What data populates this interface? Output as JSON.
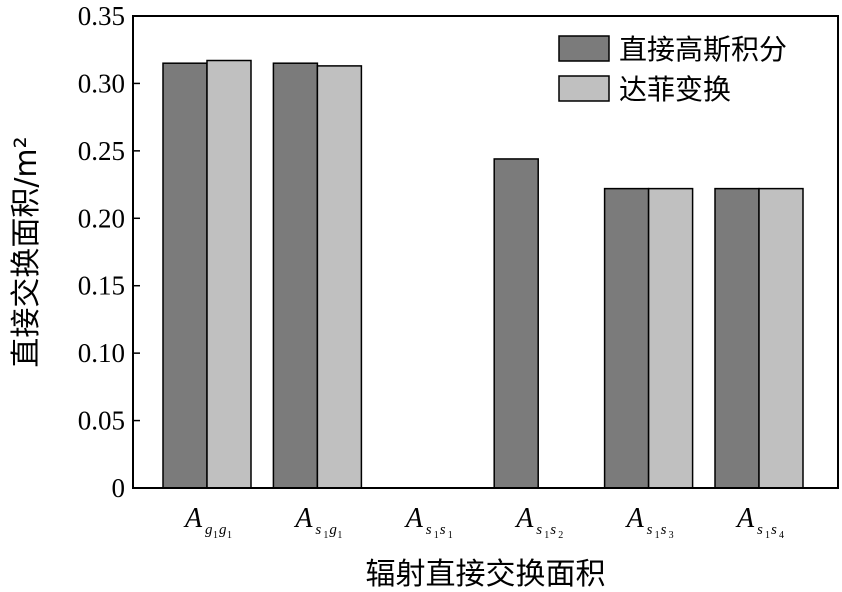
{
  "chart_data": {
    "type": "bar",
    "title": "",
    "xlabel": "辐射直接交换面积",
    "ylabel": "直接交换面积/m²",
    "ylim": [
      0,
      0.35
    ],
    "yticks": [
      0,
      0.05,
      0.1,
      0.15,
      0.2,
      0.25,
      0.3,
      0.35
    ],
    "ytick_labels": [
      "0",
      "0.05",
      "0.10",
      "0.15",
      "0.20",
      "0.25",
      "0.30",
      "0.35"
    ],
    "grid": false,
    "legend_position": "top-right",
    "categories": [
      {
        "main": "A",
        "sub": [
          [
            "g",
            "1"
          ],
          [
            "g",
            "1"
          ]
        ]
      },
      {
        "main": "A",
        "sub": [
          [
            "s",
            "1"
          ],
          [
            "g",
            "1"
          ]
        ]
      },
      {
        "main": "A",
        "sub": [
          [
            "s",
            "1"
          ],
          [
            "s",
            "1"
          ]
        ]
      },
      {
        "main": "A",
        "sub": [
          [
            "s",
            "1"
          ],
          [
            "s",
            "2"
          ]
        ]
      },
      {
        "main": "A",
        "sub": [
          [
            "s",
            "1"
          ],
          [
            "s",
            "3"
          ]
        ]
      },
      {
        "main": "A",
        "sub": [
          [
            "s",
            "1"
          ],
          [
            "s",
            "4"
          ]
        ]
      }
    ],
    "series": [
      {
        "name": "直接高斯积分",
        "color": "#7b7b7b",
        "values": [
          0.315,
          0.315,
          0,
          0.244,
          0.222,
          0.222
        ]
      },
      {
        "name": "达菲变换",
        "color": "#c0c0c0",
        "values": [
          0.317,
          0.313,
          0,
          0,
          0.222,
          0.222
        ]
      }
    ]
  }
}
